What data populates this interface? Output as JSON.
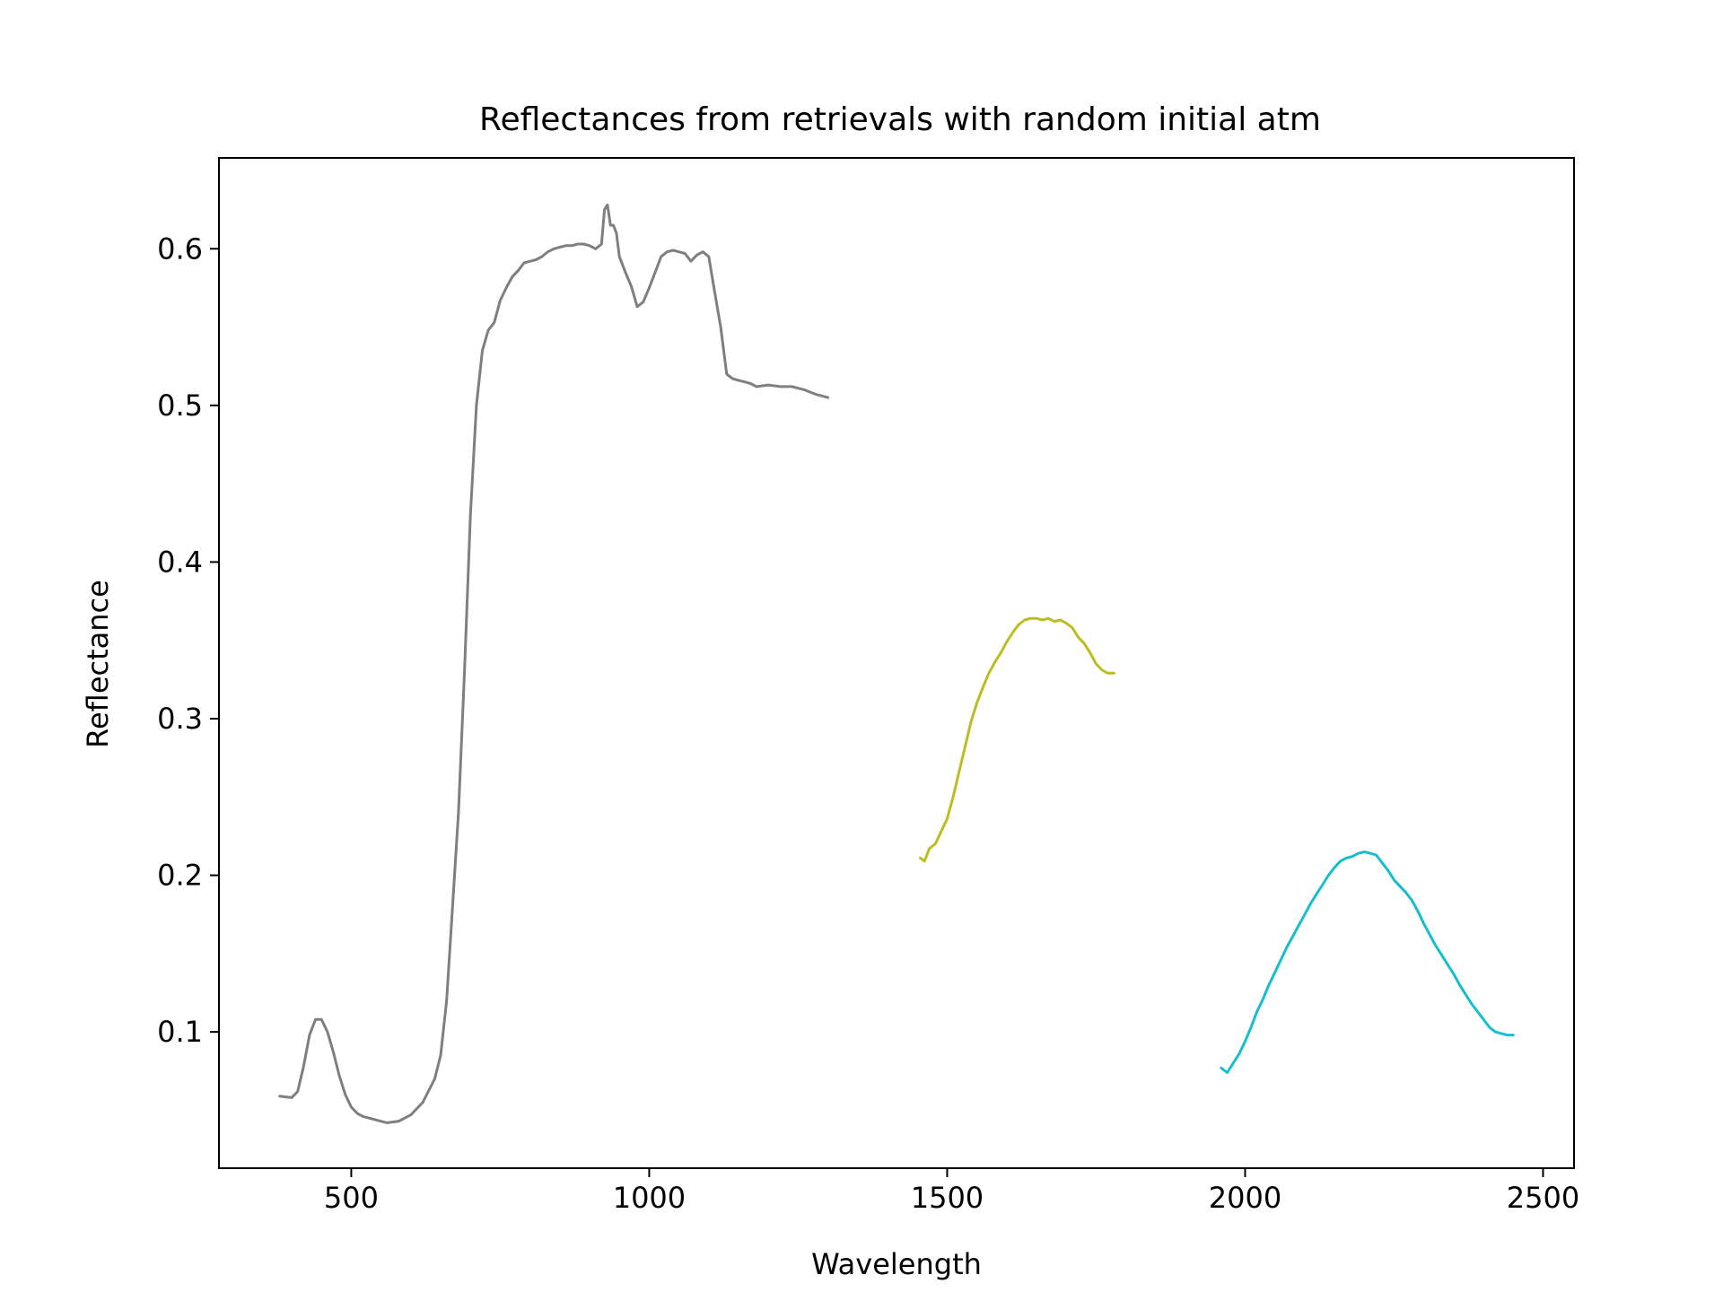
{
  "chart_data": {
    "type": "line",
    "title": "Reflectances from retrievals with random initial atm",
    "xlabel": "Wavelength",
    "ylabel": "Reflectance",
    "xlim": [
      278,
      2552
    ],
    "ylim": [
      0.013,
      0.658
    ],
    "xticks": [
      500,
      1000,
      1500,
      2000,
      2500
    ],
    "yticks": [
      0.1,
      0.2,
      0.3,
      0.4,
      0.5,
      0.6
    ],
    "xtick_labels": [
      "500",
      "1000",
      "1500",
      "2000",
      "2500"
    ],
    "ytick_labels": [
      "0.1",
      "0.2",
      "0.3",
      "0.4",
      "0.5",
      "0.6"
    ],
    "grid": false,
    "legend": "none",
    "series": [
      {
        "color": "#7f7f7f",
        "x": [
          380,
          400,
          410,
          420,
          430,
          440,
          450,
          460,
          470,
          480,
          490,
          500,
          510,
          520,
          540,
          560,
          580,
          600,
          620,
          640,
          650,
          660,
          670,
          680,
          690,
          700,
          710,
          720,
          730,
          740,
          750,
          760,
          770,
          780,
          790,
          800,
          810,
          820,
          830,
          840,
          850,
          860,
          870,
          880,
          890,
          900,
          910,
          920,
          925,
          930,
          935,
          940,
          945,
          950,
          960,
          970,
          980,
          990,
          1000,
          1010,
          1020,
          1030,
          1040,
          1050,
          1060,
          1070,
          1080,
          1090,
          1100,
          1110,
          1120,
          1130,
          1140,
          1150,
          1160,
          1170,
          1180,
          1200,
          1220,
          1240,
          1260,
          1280,
          1300
        ],
        "y": [
          0.059,
          0.058,
          0.062,
          0.078,
          0.098,
          0.108,
          0.108,
          0.1,
          0.087,
          0.072,
          0.06,
          0.052,
          0.048,
          0.046,
          0.044,
          0.042,
          0.043,
          0.047,
          0.055,
          0.07,
          0.085,
          0.12,
          0.18,
          0.24,
          0.33,
          0.43,
          0.5,
          0.535,
          0.548,
          0.553,
          0.567,
          0.575,
          0.582,
          0.586,
          0.591,
          0.592,
          0.593,
          0.595,
          0.598,
          0.6,
          0.601,
          0.602,
          0.602,
          0.603,
          0.603,
          0.602,
          0.6,
          0.603,
          0.625,
          0.628,
          0.615,
          0.615,
          0.61,
          0.595,
          0.585,
          0.576,
          0.563,
          0.566,
          0.575,
          0.585,
          0.595,
          0.598,
          0.599,
          0.598,
          0.597,
          0.592,
          0.596,
          0.598,
          0.595,
          0.572,
          0.55,
          0.52,
          0.517,
          0.516,
          0.515,
          0.514,
          0.512,
          0.513,
          0.512,
          0.512,
          0.51,
          0.507,
          0.505
        ]
      },
      {
        "color": "#bcbd22",
        "x": [
          1455,
          1462,
          1470,
          1480,
          1490,
          1500,
          1510,
          1520,
          1530,
          1540,
          1550,
          1560,
          1570,
          1580,
          1590,
          1600,
          1610,
          1620,
          1630,
          1640,
          1650,
          1660,
          1670,
          1680,
          1690,
          1700,
          1710,
          1720,
          1730,
          1740,
          1750,
          1760,
          1770,
          1780
        ],
        "y": [
          0.211,
          0.209,
          0.217,
          0.22,
          0.228,
          0.236,
          0.25,
          0.266,
          0.282,
          0.298,
          0.31,
          0.32,
          0.329,
          0.336,
          0.342,
          0.349,
          0.355,
          0.36,
          0.363,
          0.364,
          0.364,
          0.363,
          0.364,
          0.362,
          0.363,
          0.361,
          0.358,
          0.352,
          0.348,
          0.342,
          0.335,
          0.331,
          0.329,
          0.329
        ]
      },
      {
        "color": "#17becf",
        "x": [
          1960,
          1970,
          1980,
          1990,
          2000,
          2010,
          2020,
          2030,
          2040,
          2050,
          2060,
          2070,
          2080,
          2090,
          2100,
          2110,
          2120,
          2130,
          2140,
          2150,
          2160,
          2170,
          2180,
          2190,
          2200,
          2210,
          2220,
          2230,
          2240,
          2250,
          2260,
          2270,
          2280,
          2290,
          2300,
          2310,
          2320,
          2330,
          2340,
          2350,
          2360,
          2370,
          2380,
          2390,
          2400,
          2410,
          2420,
          2430,
          2440,
          2450
        ],
        "y": [
          0.077,
          0.074,
          0.08,
          0.086,
          0.094,
          0.103,
          0.113,
          0.121,
          0.13,
          0.138,
          0.146,
          0.154,
          0.161,
          0.168,
          0.175,
          0.182,
          0.188,
          0.194,
          0.2,
          0.205,
          0.209,
          0.211,
          0.212,
          0.214,
          0.215,
          0.214,
          0.213,
          0.208,
          0.203,
          0.197,
          0.193,
          0.189,
          0.184,
          0.177,
          0.169,
          0.162,
          0.155,
          0.149,
          0.143,
          0.137,
          0.13,
          0.124,
          0.118,
          0.113,
          0.108,
          0.103,
          0.1,
          0.099,
          0.098,
          0.098
        ]
      }
    ]
  }
}
